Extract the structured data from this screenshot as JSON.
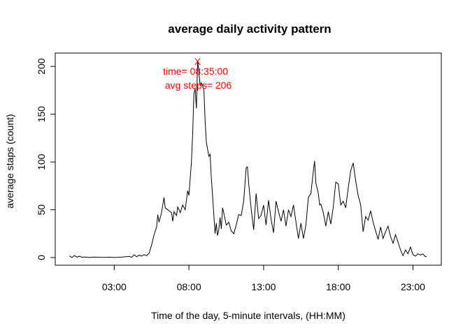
{
  "chart_data": {
    "type": "line",
    "title": "average daily activity pattern",
    "xlabel": "Time of the day, 5-minute intervals, (HH:MM)",
    "ylabel": "average staps (count)",
    "x_ticks": [
      {
        "label": "03:00",
        "hour": 3
      },
      {
        "label": "08:00",
        "hour": 8
      },
      {
        "label": "13:00",
        "hour": 13
      },
      {
        "label": "18:00",
        "hour": 18
      },
      {
        "label": "23:00",
        "hour": 23
      }
    ],
    "y_ticks": [
      0,
      50,
      100,
      150,
      200
    ],
    "xlim_hours": [
      -0.95,
      24.9
    ],
    "ylim": [
      -8,
      214
    ],
    "grid": false,
    "legend": "none",
    "line_color": "#000000",
    "annotation_color": "#ff0000",
    "series": [
      {
        "points": [
          [
            "00:00",
            1.7
          ],
          [
            "00:10",
            0.1
          ],
          [
            "00:20",
            2.1
          ],
          [
            "00:30",
            0.5
          ],
          [
            "00:40",
            1.5
          ],
          [
            "00:50",
            0.3
          ],
          [
            "01:00",
            0.6
          ],
          [
            "01:20",
            0.1
          ],
          [
            "01:40",
            0.5
          ],
          [
            "02:00",
            0.3
          ],
          [
            "02:20",
            0.2
          ],
          [
            "02:40",
            0.4
          ],
          [
            "03:00",
            0.1
          ],
          [
            "03:30",
            0.5
          ],
          [
            "04:00",
            1.2
          ],
          [
            "04:10",
            0.3
          ],
          [
            "04:20",
            3.0
          ],
          [
            "04:30",
            0.8
          ],
          [
            "04:40",
            2.5
          ],
          [
            "04:50",
            1.5
          ],
          [
            "05:00",
            3.1
          ],
          [
            "05:10",
            2.0
          ],
          [
            "05:20",
            4.5
          ],
          [
            "05:30",
            13
          ],
          [
            "05:40",
            24
          ],
          [
            "05:50",
            32
          ],
          [
            "05:55",
            45
          ],
          [
            "06:00",
            37
          ],
          [
            "06:10",
            47
          ],
          [
            "06:20",
            63
          ],
          [
            "06:25",
            52
          ],
          [
            "06:30",
            51
          ],
          [
            "06:40",
            49
          ],
          [
            "06:50",
            47
          ],
          [
            "06:55",
            38
          ],
          [
            "07:00",
            48
          ],
          [
            "07:10",
            44
          ],
          [
            "07:15",
            53
          ],
          [
            "07:25",
            47
          ],
          [
            "07:35",
            55
          ],
          [
            "07:45",
            50
          ],
          [
            "07:55",
            70
          ],
          [
            "08:00",
            65
          ],
          [
            "08:10",
            100
          ],
          [
            "08:15",
            130
          ],
          [
            "08:20",
            171
          ],
          [
            "08:25",
            177
          ],
          [
            "08:30",
            156
          ],
          [
            "08:35",
            206
          ],
          [
            "08:40",
            195
          ],
          [
            "08:45",
            180
          ],
          [
            "08:50",
            183
          ],
          [
            "09:00",
            176
          ],
          [
            "09:05",
            143
          ],
          [
            "09:10",
            121
          ],
          [
            "09:20",
            106
          ],
          [
            "09:25",
            108
          ],
          [
            "09:30",
            84
          ],
          [
            "09:35",
            65
          ],
          [
            "09:40",
            45
          ],
          [
            "09:45",
            25
          ],
          [
            "09:50",
            36
          ],
          [
            "09:55",
            23
          ],
          [
            "10:00",
            29
          ],
          [
            "10:05",
            42
          ],
          [
            "10:10",
            30
          ],
          [
            "10:15",
            52
          ],
          [
            "10:20",
            47
          ],
          [
            "10:30",
            34
          ],
          [
            "10:40",
            37
          ],
          [
            "10:50",
            28
          ],
          [
            "11:00",
            25
          ],
          [
            "11:10",
            34
          ],
          [
            "11:20",
            45
          ],
          [
            "11:30",
            44
          ],
          [
            "11:40",
            59
          ],
          [
            "11:50",
            94
          ],
          [
            "11:55",
            95
          ],
          [
            "12:00",
            78
          ],
          [
            "12:10",
            51
          ],
          [
            "12:20",
            29
          ],
          [
            "12:30",
            67
          ],
          [
            "12:40",
            41
          ],
          [
            "12:50",
            44
          ],
          [
            "13:00",
            55
          ],
          [
            "13:10",
            34
          ],
          [
            "13:20",
            60
          ],
          [
            "13:30",
            40
          ],
          [
            "13:40",
            26
          ],
          [
            "13:50",
            59
          ],
          [
            "14:00",
            48
          ],
          [
            "14:10",
            38
          ],
          [
            "14:20",
            50
          ],
          [
            "14:30",
            33
          ],
          [
            "14:40",
            50
          ],
          [
            "14:50",
            43
          ],
          [
            "15:00",
            55
          ],
          [
            "15:10",
            37
          ],
          [
            "15:20",
            20
          ],
          [
            "15:30",
            36
          ],
          [
            "15:40",
            20
          ],
          [
            "15:50",
            34
          ],
          [
            "16:00",
            63
          ],
          [
            "16:10",
            67
          ],
          [
            "16:20",
            91
          ],
          [
            "16:25",
            101
          ],
          [
            "16:30",
            78
          ],
          [
            "16:40",
            67
          ],
          [
            "16:45",
            55
          ],
          [
            "16:50",
            56
          ],
          [
            "17:00",
            47
          ],
          [
            "17:10",
            33
          ],
          [
            "17:20",
            48
          ],
          [
            "17:30",
            35
          ],
          [
            "17:40",
            53
          ],
          [
            "17:50",
            79
          ],
          [
            "18:00",
            77
          ],
          [
            "18:10",
            55
          ],
          [
            "18:20",
            59
          ],
          [
            "18:30",
            52
          ],
          [
            "18:40",
            73
          ],
          [
            "18:50",
            91
          ],
          [
            "19:00",
            99
          ],
          [
            "19:10",
            80
          ],
          [
            "19:20",
            65
          ],
          [
            "19:30",
            55
          ],
          [
            "19:40",
            27
          ],
          [
            "19:50",
            43
          ],
          [
            "20:00",
            39
          ],
          [
            "20:10",
            49
          ],
          [
            "20:20",
            37
          ],
          [
            "20:30",
            28
          ],
          [
            "20:40",
            19
          ],
          [
            "20:50",
            32
          ],
          [
            "21:00",
            20
          ],
          [
            "21:10",
            27
          ],
          [
            "21:20",
            33
          ],
          [
            "21:30",
            22
          ],
          [
            "21:40",
            15
          ],
          [
            "21:50",
            24
          ],
          [
            "22:00",
            16
          ],
          [
            "22:10",
            8
          ],
          [
            "22:20",
            2
          ],
          [
            "22:30",
            8
          ],
          [
            "22:40",
            4
          ],
          [
            "22:50",
            11
          ],
          [
            "23:00",
            3
          ],
          [
            "23:10",
            1.5
          ],
          [
            "23:20",
            4
          ],
          [
            "23:30",
            2.6
          ],
          [
            "23:40",
            3.8
          ],
          [
            "23:50",
            1
          ],
          [
            "23:55",
            1.1
          ]
        ]
      }
    ],
    "annotation": {
      "marker": "X",
      "x": "08:35",
      "y": 206,
      "line1": "time= 08:35:00",
      "line2": "avg steps= 206"
    }
  }
}
